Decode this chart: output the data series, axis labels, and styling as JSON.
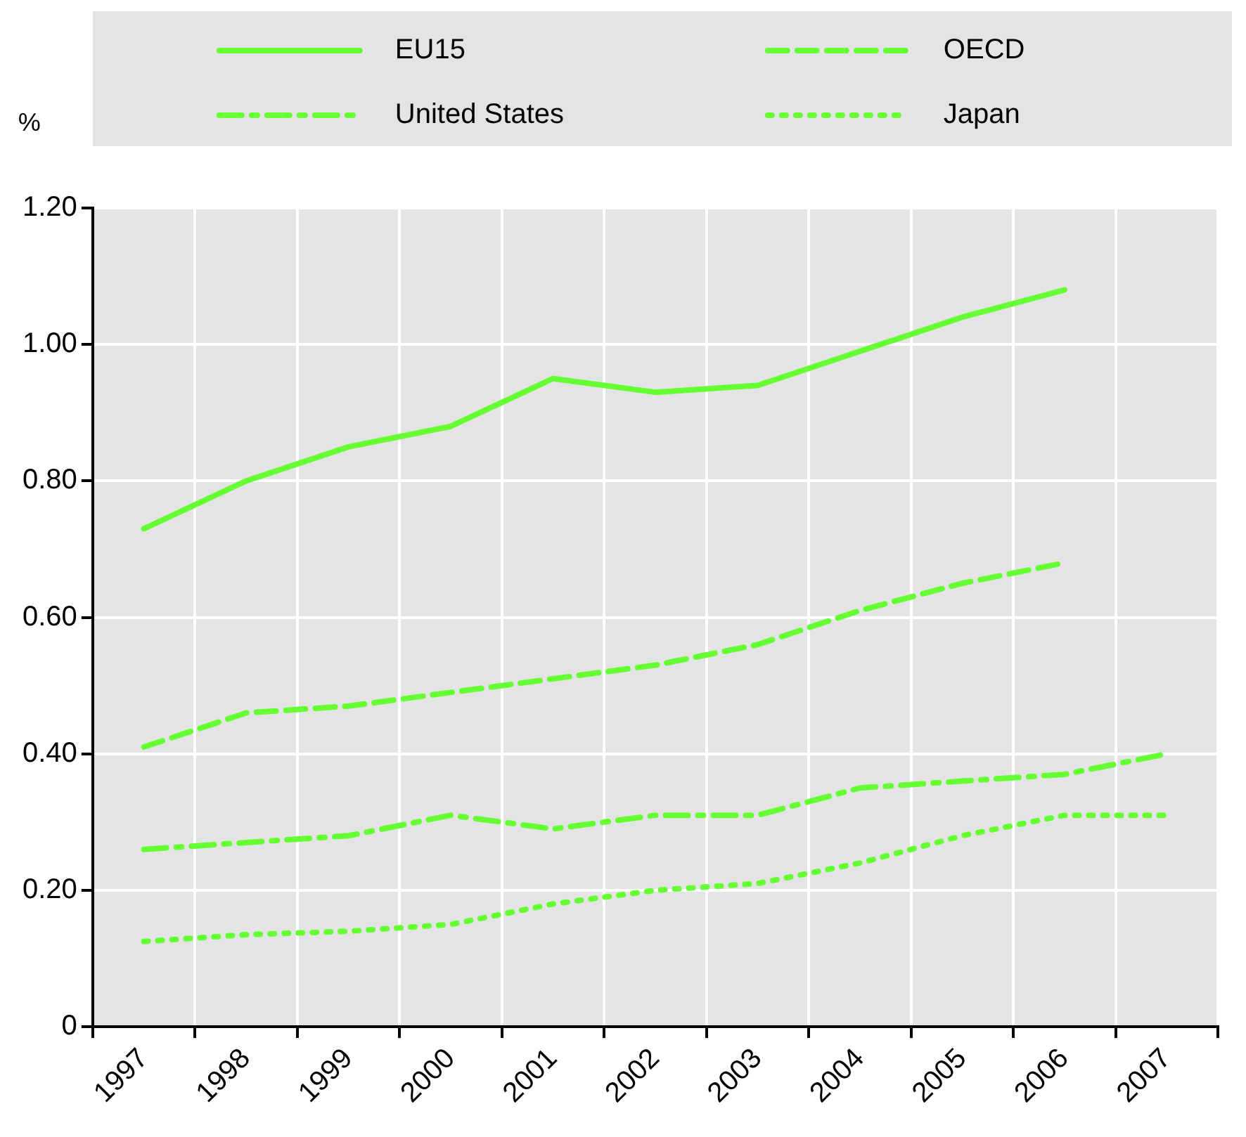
{
  "chart_data": {
    "type": "line",
    "ylabel": "%",
    "categories": [
      "1997",
      "1998",
      "1999",
      "2000",
      "2001",
      "2002",
      "2003",
      "2004",
      "2005",
      "2006",
      "2007"
    ],
    "series": [
      {
        "name": "EU15",
        "color": "#66ff33",
        "line_style": "solid",
        "values": [
          0.73,
          0.8,
          0.85,
          0.88,
          0.95,
          0.93,
          0.94,
          0.99,
          1.04,
          1.08,
          null
        ]
      },
      {
        "name": "OECD",
        "color": "#66ff33",
        "line_style": "dashed",
        "values": [
          0.41,
          0.46,
          0.47,
          0.49,
          0.51,
          0.53,
          0.56,
          0.61,
          0.65,
          0.68,
          null
        ]
      },
      {
        "name": "United States",
        "color": "#66ff33",
        "line_style": "dashdot",
        "values": [
          0.26,
          0.27,
          0.28,
          0.31,
          0.29,
          0.31,
          0.31,
          0.35,
          0.36,
          0.37,
          0.4
        ]
      },
      {
        "name": "Japan",
        "color": "#66ff33",
        "line_style": "dotted",
        "values": [
          0.125,
          0.135,
          0.14,
          0.15,
          0.18,
          0.2,
          0.21,
          0.24,
          0.28,
          0.31,
          0.31
        ]
      }
    ],
    "ylim": [
      0,
      1.2
    ],
    "yticks": [
      {
        "value": 0,
        "label": "0"
      },
      {
        "value": 0.2,
        "label": "0.20"
      },
      {
        "value": 0.4,
        "label": "0.40"
      },
      {
        "value": 0.6,
        "label": "0.60"
      },
      {
        "value": 0.8,
        "label": "0.80"
      },
      {
        "value": 1.0,
        "label": "1.00"
      },
      {
        "value": 1.2,
        "label": "1.20"
      }
    ],
    "grid": true,
    "legend": "top",
    "marker": "none"
  }
}
